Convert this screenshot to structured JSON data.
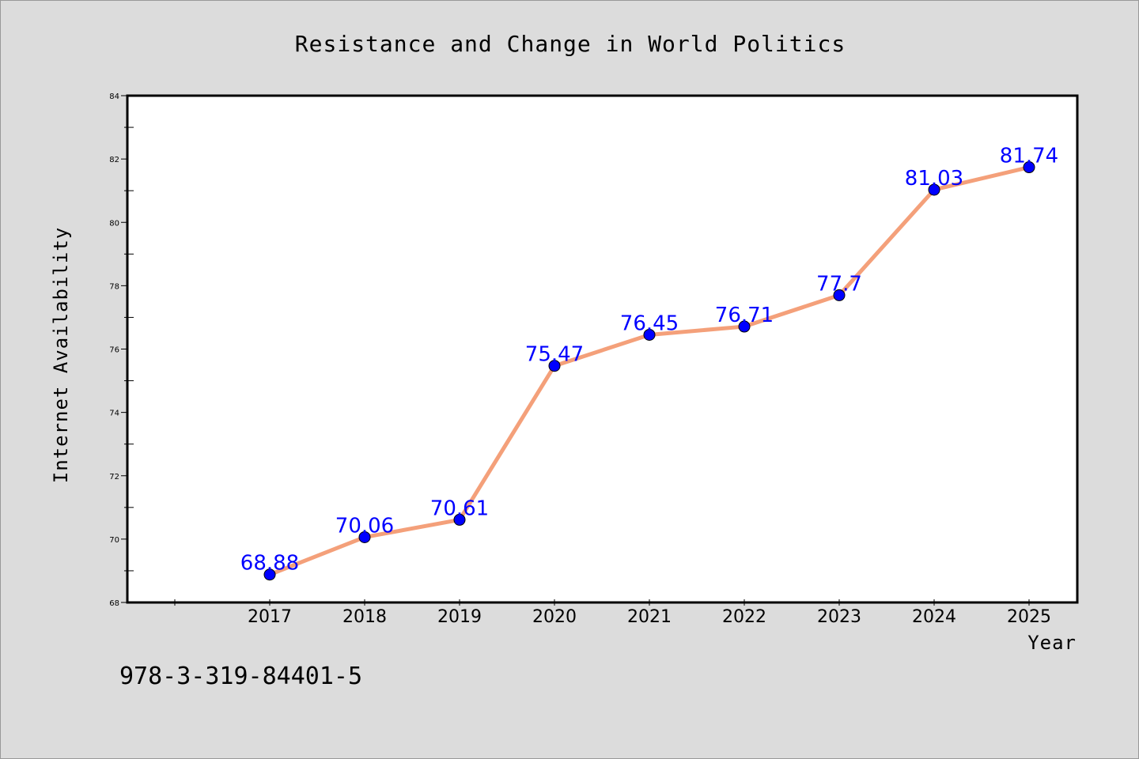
{
  "chart_data": {
    "type": "line",
    "title": "Resistance and Change in World Politics",
    "xlabel": "Year",
    "ylabel": "Internet Availability",
    "categories": [
      "2017",
      "2018",
      "2019",
      "2020",
      "2021",
      "2022",
      "2023",
      "2024",
      "2025"
    ],
    "values": [
      68.88,
      70.06,
      70.61,
      75.47,
      76.45,
      76.71,
      77.7,
      81.03,
      81.74
    ],
    "data_labels": [
      "68.88",
      "70.06",
      "70.61",
      "75.47",
      "76.45",
      "76.71",
      "77.7",
      "81.03",
      "81.74"
    ],
    "ylim": [
      68,
      84
    ],
    "yticks": [
      68,
      70,
      72,
      74,
      76,
      78,
      80,
      82,
      84
    ],
    "ytick_labels": [
      "68",
      "70",
      "72",
      "74",
      "76",
      "78",
      "80",
      "82",
      "84"
    ],
    "grid": false,
    "line_color": "#f4a07a",
    "marker_color": "#0000ff",
    "label_color": "#0000ff"
  },
  "footer_text": "978-3-319-84401-5"
}
